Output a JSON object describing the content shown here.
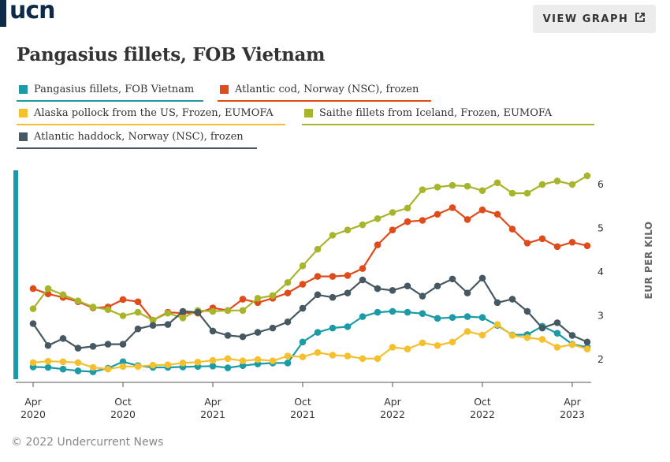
{
  "logo": {
    "text": "ucn"
  },
  "header": {
    "view_graph_label": "VIEW GRAPH"
  },
  "footer": {
    "copyright": "© 2022 Undercurrent News"
  },
  "chart_data": {
    "type": "line",
    "title": "Pangasius fillets, FOB Vietnam",
    "xlabel": "",
    "ylabel": "EUR PER KILO",
    "ylim": [
      1.6,
      6.4
    ],
    "y_ticks": [
      2,
      3,
      4,
      5,
      6
    ],
    "x_ticks": [
      {
        "label": [
          "Apr",
          "2020"
        ],
        "x": 0
      },
      {
        "label": [
          "Oct",
          "2020"
        ],
        "x": 6
      },
      {
        "label": [
          "Apr",
          "2021"
        ],
        "x": 12
      },
      {
        "label": [
          "Oct",
          "2021"
        ],
        "x": 18
      },
      {
        "label": [
          "Apr",
          "2022"
        ],
        "x": 24
      },
      {
        "label": [
          "Oct",
          "2022"
        ],
        "x": 30
      },
      {
        "label": [
          "Apr",
          "2023"
        ],
        "x": 36
      }
    ],
    "x_start": "Apr 2020",
    "x_end": "May 2023",
    "legend_position": "top",
    "series": [
      {
        "name": "Pangasius fillets, FOB Vietnam",
        "color": "#1a9ba6",
        "values": [
          1.83,
          1.82,
          1.78,
          1.74,
          1.72,
          1.8,
          1.95,
          1.86,
          1.82,
          1.82,
          1.83,
          1.84,
          1.85,
          1.81,
          1.86,
          1.9,
          1.92,
          1.92,
          2.4,
          2.62,
          2.72,
          2.75,
          2.98,
          3.08,
          3.1,
          3.08,
          3.05,
          2.94,
          2.96,
          2.98,
          2.96,
          2.78,
          2.56,
          2.57,
          2.76,
          2.6,
          2.35,
          2.28
        ]
      },
      {
        "name": "Atlantic cod, Norway (NSC), frozen",
        "color": "#e04b1a",
        "values": [
          3.62,
          3.5,
          3.42,
          3.32,
          3.18,
          3.2,
          3.37,
          3.32,
          2.9,
          3.08,
          3.06,
          3.06,
          3.18,
          3.12,
          3.38,
          3.3,
          3.4,
          3.52,
          3.72,
          3.9,
          3.9,
          3.92,
          4.08,
          4.62,
          4.96,
          5.15,
          5.18,
          5.32,
          5.47,
          5.2,
          5.42,
          5.32,
          4.98,
          4.66,
          4.76,
          4.58,
          4.68,
          4.6
        ]
      },
      {
        "name": "Alaska pollock from the US, Frozen, EUMOFA",
        "color": "#f5c02e",
        "values": [
          1.93,
          1.96,
          1.95,
          1.93,
          1.82,
          1.78,
          1.84,
          1.84,
          1.87,
          1.88,
          1.92,
          1.94,
          1.98,
          2.02,
          1.97,
          2.0,
          1.97,
          2.08,
          2.06,
          2.16,
          2.1,
          2.08,
          2.02,
          2.02,
          2.28,
          2.24,
          2.38,
          2.32,
          2.4,
          2.64,
          2.56,
          2.8,
          2.55,
          2.5,
          2.46,
          2.28,
          2.34,
          2.24
        ]
      },
      {
        "name": "Saithe fillets from Iceland, Frozen, EUMOFA",
        "color": "#a8b52a",
        "values": [
          3.16,
          3.62,
          3.48,
          3.34,
          3.2,
          3.14,
          3.0,
          3.08,
          2.9,
          3.06,
          2.95,
          3.12,
          3.1,
          3.12,
          3.12,
          3.4,
          3.46,
          3.76,
          4.14,
          4.52,
          4.84,
          4.96,
          5.08,
          5.22,
          5.36,
          5.46,
          5.88,
          5.94,
          5.98,
          5.96,
          5.86,
          6.04,
          5.8,
          5.8,
          6.0,
          6.08,
          6.0,
          6.2
        ]
      },
      {
        "name": "Atlantic haddock, Norway (NSC), frozen",
        "color": "#465962",
        "values": [
          2.82,
          2.32,
          2.48,
          2.26,
          2.3,
          2.35,
          2.35,
          2.7,
          2.78,
          2.8,
          3.1,
          3.08,
          2.65,
          2.55,
          2.52,
          2.62,
          2.72,
          2.86,
          3.17,
          3.48,
          3.42,
          3.52,
          3.82,
          3.62,
          3.58,
          3.68,
          3.45,
          3.68,
          3.84,
          3.52,
          3.86,
          3.3,
          3.38,
          3.1,
          2.72,
          2.84,
          2.55,
          2.4
        ]
      }
    ]
  }
}
